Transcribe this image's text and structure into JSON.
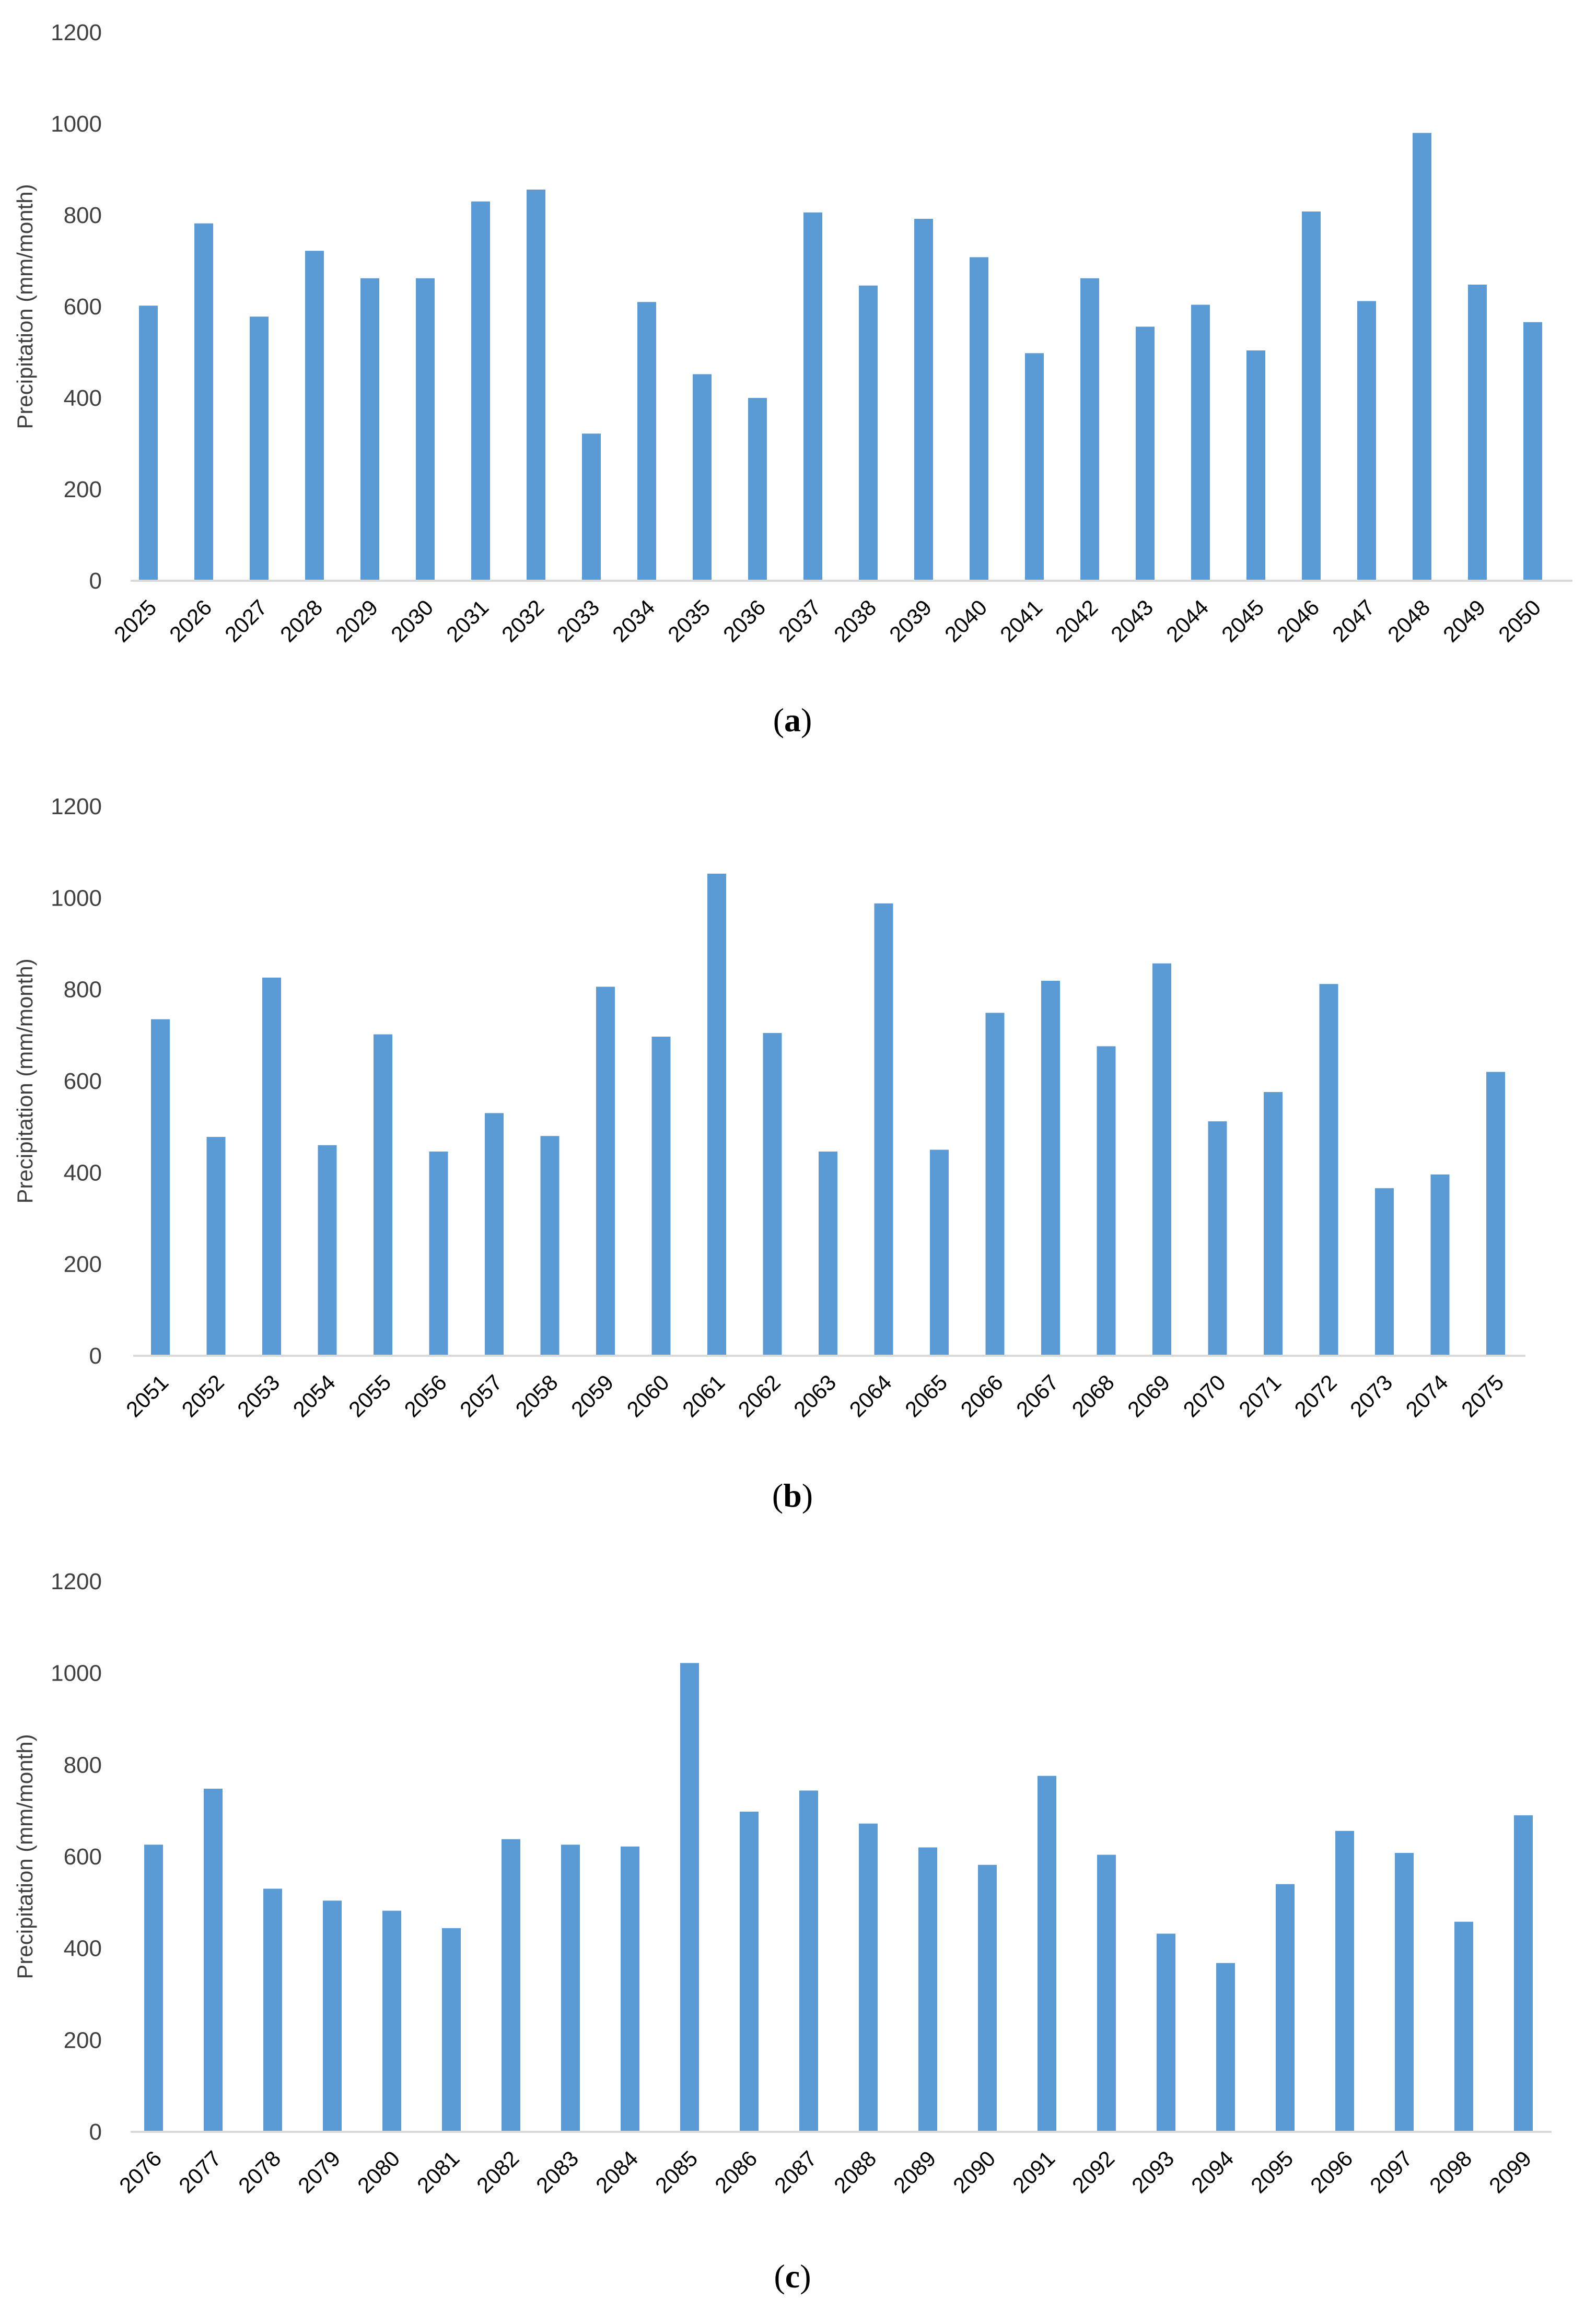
{
  "colors": {
    "bar": "#5b9bd5",
    "axis": "#d9d9d9",
    "tick_text": "#404040"
  },
  "chart_data": [
    {
      "type": "bar",
      "panel_label": "a",
      "ylabel": "Precipitation (mm/month)",
      "xlabel": "",
      "ylim": [
        0,
        1200
      ],
      "yticks": [
        0,
        200,
        400,
        600,
        800,
        1000,
        1200
      ],
      "grid": false,
      "categories": [
        "2025",
        "2026",
        "2027",
        "2028",
        "2029",
        "2030",
        "2031",
        "2032",
        "2033",
        "2034",
        "2035",
        "2036",
        "2037",
        "2038",
        "2039",
        "2040",
        "2041",
        "2042",
        "2043",
        "2044",
        "2045",
        "2046",
        "2047",
        "2048",
        "2049",
        "2050"
      ],
      "values": [
        602,
        782,
        578,
        722,
        662,
        662,
        830,
        856,
        322,
        610,
        452,
        400,
        806,
        646,
        792,
        708,
        498,
        662,
        556,
        604,
        504,
        808,
        612,
        980,
        648,
        566
      ]
    },
    {
      "type": "bar",
      "panel_label": "b",
      "ylabel": "Precipitation (mm/month)",
      "xlabel": "",
      "ylim": [
        0,
        1200
      ],
      "yticks": [
        0,
        200,
        400,
        600,
        800,
        1000,
        1200
      ],
      "grid": false,
      "categories": [
        "2051",
        "2052",
        "2053",
        "2054",
        "2055",
        "2056",
        "2057",
        "2058",
        "2059",
        "2060",
        "2061",
        "2062",
        "2063",
        "2064",
        "2065",
        "2066",
        "2067",
        "2068",
        "2069",
        "2070",
        "2071",
        "2072",
        "2073",
        "2074",
        "2075"
      ],
      "values": [
        735,
        478,
        826,
        460,
        702,
        446,
        530,
        480,
        806,
        697,
        1053,
        705,
        446,
        988,
        450,
        749,
        819,
        676,
        857,
        512,
        576,
        812,
        366,
        396,
        620
      ]
    },
    {
      "type": "bar",
      "panel_label": "c",
      "ylabel": "Precipitation (mm/month)",
      "xlabel": "",
      "ylim": [
        0,
        1200
      ],
      "yticks": [
        0,
        200,
        400,
        600,
        800,
        1000,
        1200
      ],
      "grid": false,
      "categories": [
        "2076",
        "2077",
        "2078",
        "2079",
        "2080",
        "2081",
        "2082",
        "2083",
        "2084",
        "2085",
        "2086",
        "2087",
        "2088",
        "2089",
        "2090",
        "2091",
        "2092",
        "2093",
        "2094",
        "2095",
        "2096",
        "2097",
        "2098",
        "2099"
      ],
      "values": [
        626,
        748,
        530,
        504,
        482,
        444,
        638,
        626,
        622,
        1022,
        698,
        744,
        672,
        620,
        582,
        776,
        604,
        432,
        368,
        540,
        656,
        608,
        458,
        690
      ]
    }
  ]
}
